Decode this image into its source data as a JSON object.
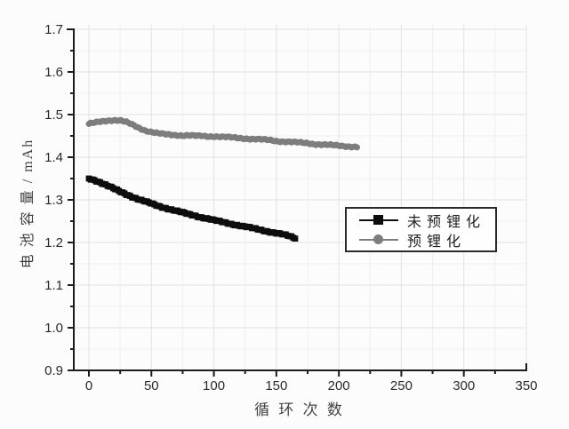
{
  "figure": {
    "background": "#fcfcfc",
    "axis_color": "#1c1c1c",
    "tick_label_color": "#2a2a2a",
    "grid_major_color": "#e2e2e2",
    "grid_minor_color": "#efefef"
  },
  "legend": {
    "items": [
      {
        "label": "未 预 锂 化",
        "marker": "square",
        "color": "#0d0d0d"
      },
      {
        "label": "预 锂 化",
        "marker": "circle",
        "color": "#7d7d7d"
      }
    ]
  },
  "chart_data": {
    "type": "scatter",
    "title": "",
    "xlabel": "循 环 次 数",
    "ylabel": "电 池 容 量 / mAh",
    "xlim": [
      -12,
      350
    ],
    "ylim": [
      0.9,
      1.7
    ],
    "x_ticks": [
      0,
      50,
      100,
      150,
      200,
      250,
      300,
      350
    ],
    "x_tick_labels": [
      "0",
      "50",
      "100",
      "150",
      "200",
      "250",
      "300",
      "350"
    ],
    "x_minor_step": 25,
    "y_ticks": [
      0.9,
      1.0,
      1.1,
      1.2,
      1.3,
      1.4,
      1.5,
      1.6,
      1.7
    ],
    "y_tick_labels": [
      "0.9",
      "1.0",
      "1.1",
      "1.2",
      "1.3",
      "1.4",
      "1.5",
      "1.6",
      "1.7"
    ],
    "y_minor_step": 0.05,
    "grid": true,
    "legend_position": "center-right",
    "series": [
      {
        "name": "未预锂化",
        "marker": "square",
        "color": "#0d0d0d",
        "points": [
          [
            0,
            1.35
          ],
          [
            5,
            1.346
          ],
          [
            10,
            1.34
          ],
          [
            15,
            1.333
          ],
          [
            20,
            1.326
          ],
          [
            25,
            1.319
          ],
          [
            30,
            1.313
          ],
          [
            35,
            1.307
          ],
          [
            40,
            1.301
          ],
          [
            45,
            1.296
          ],
          [
            50,
            1.291
          ],
          [
            55,
            1.286
          ],
          [
            60,
            1.282
          ],
          [
            65,
            1.278
          ],
          [
            70,
            1.274
          ],
          [
            75,
            1.27
          ],
          [
            80,
            1.266
          ],
          [
            85,
            1.263
          ],
          [
            90,
            1.259
          ],
          [
            95,
            1.256
          ],
          [
            100,
            1.252
          ],
          [
            105,
            1.249
          ],
          [
            110,
            1.246
          ],
          [
            115,
            1.243
          ],
          [
            120,
            1.24
          ],
          [
            125,
            1.237
          ],
          [
            130,
            1.234
          ],
          [
            135,
            1.231
          ],
          [
            140,
            1.228
          ],
          [
            145,
            1.225
          ],
          [
            150,
            1.222
          ],
          [
            155,
            1.219
          ],
          [
            160,
            1.215
          ],
          [
            165,
            1.21
          ]
        ]
      },
      {
        "name": "预锂化",
        "marker": "circle",
        "color": "#7d7d7d",
        "points": [
          [
            0,
            1.478
          ],
          [
            5,
            1.481
          ],
          [
            10,
            1.484
          ],
          [
            15,
            1.486
          ],
          [
            20,
            1.487
          ],
          [
            25,
            1.486
          ],
          [
            30,
            1.482
          ],
          [
            35,
            1.476
          ],
          [
            40,
            1.469
          ],
          [
            45,
            1.463
          ],
          [
            50,
            1.459
          ],
          [
            55,
            1.456
          ],
          [
            60,
            1.454
          ],
          [
            65,
            1.453
          ],
          [
            70,
            1.452
          ],
          [
            75,
            1.451
          ],
          [
            80,
            1.451
          ],
          [
            85,
            1.45
          ],
          [
            90,
            1.45
          ],
          [
            95,
            1.449
          ],
          [
            100,
            1.449
          ],
          [
            105,
            1.448
          ],
          [
            110,
            1.447
          ],
          [
            115,
            1.446
          ],
          [
            120,
            1.445
          ],
          [
            125,
            1.444
          ],
          [
            130,
            1.443
          ],
          [
            135,
            1.442
          ],
          [
            140,
            1.441
          ],
          [
            145,
            1.44
          ],
          [
            150,
            1.438
          ],
          [
            155,
            1.437
          ],
          [
            160,
            1.436
          ],
          [
            165,
            1.435
          ],
          [
            170,
            1.434
          ],
          [
            175,
            1.433
          ],
          [
            180,
            1.431
          ],
          [
            185,
            1.43
          ],
          [
            190,
            1.429
          ],
          [
            195,
            1.428
          ],
          [
            200,
            1.427
          ],
          [
            205,
            1.426
          ],
          [
            210,
            1.425
          ],
          [
            215,
            1.424
          ]
        ]
      }
    ]
  }
}
